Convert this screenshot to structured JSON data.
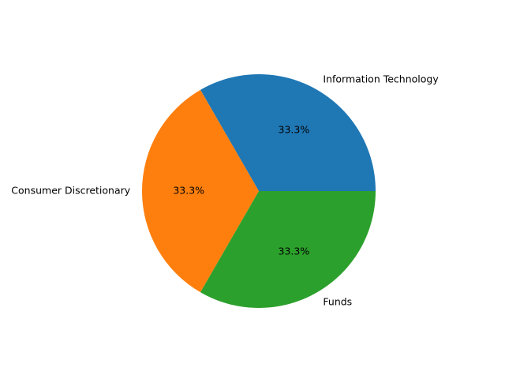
{
  "chart_data": {
    "type": "pie",
    "categories": [
      "Information Technology",
      "Consumer Discretionary",
      "Funds"
    ],
    "values": [
      33.3,
      33.3,
      33.3
    ],
    "percent_labels": [
      "33.3%",
      "33.3%",
      "33.3%"
    ],
    "colors": [
      "#1f77b4",
      "#ff7f0e",
      "#2ca02c"
    ],
    "start_angle_deg": 0,
    "direction": "counterclockwise",
    "legend": "none",
    "title": ""
  }
}
